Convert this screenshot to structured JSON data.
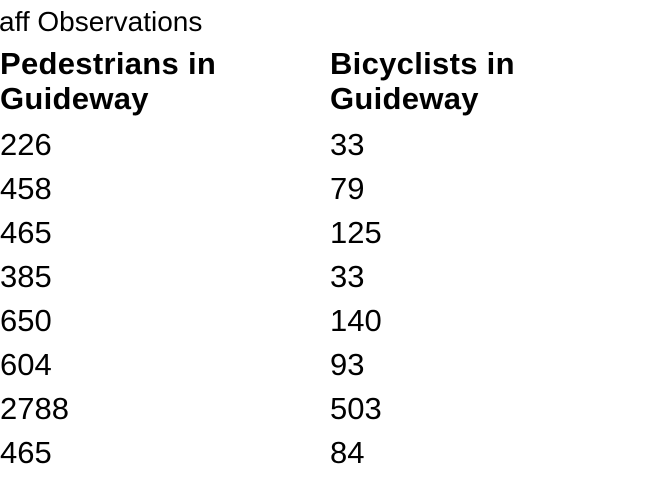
{
  "page": {
    "background_color": "#ffffff",
    "text_color": "#000000"
  },
  "document": {
    "title": "aff Observations",
    "table": {
      "col1_header_line1": "Pedestrians in",
      "col1_header_line2": "Guideway",
      "col2_header_line1": "Bicyclists in",
      "col2_header_line2": "Guideway",
      "rows": [
        {
          "pedestrians": "226",
          "bicyclists": "33"
        },
        {
          "pedestrians": "458",
          "bicyclists": "79"
        },
        {
          "pedestrians": "465",
          "bicyclists": "125"
        },
        {
          "pedestrians": "385",
          "bicyclists": "33"
        },
        {
          "pedestrians": "650",
          "bicyclists": "140"
        },
        {
          "pedestrians": "604",
          "bicyclists": "93"
        },
        {
          "pedestrians": "2788",
          "bicyclists": "503"
        },
        {
          "pedestrians": "465",
          "bicyclists": "84"
        }
      ]
    }
  },
  "chart_data": {
    "type": "table",
    "title": "aff Observations",
    "columns": [
      "Pedestrians in Guideway",
      "Bicyclists in Guideway"
    ],
    "series": [
      {
        "name": "Pedestrians in Guideway",
        "values": [
          226,
          458,
          465,
          385,
          650,
          604,
          2788,
          465
        ]
      },
      {
        "name": "Bicyclists in Guideway",
        "values": [
          33,
          79,
          125,
          33,
          140,
          93,
          503,
          84
        ]
      }
    ]
  }
}
